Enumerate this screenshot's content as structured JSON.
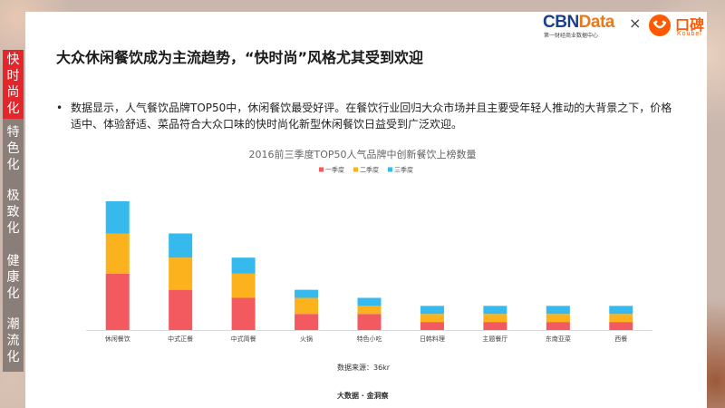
{
  "side_nav": {
    "items": [
      {
        "label": "快时尚化",
        "active": true
      },
      {
        "label": "特色化",
        "active": false
      },
      {
        "label": "极致化",
        "active": false
      },
      {
        "label": "健康化",
        "active": false
      },
      {
        "label": "潮流化",
        "active": false
      }
    ]
  },
  "logos": {
    "cbn_part1": "CBN",
    "cbn_part2": "Data",
    "cbn_sub": "第一财经商业数据中心",
    "times": "×",
    "koubei_name": "口碑",
    "koubei_sub": "Koubei"
  },
  "title": "大众休闲餐饮成为主流趋势，“快时尚”风格尤其受到欢迎",
  "bullet": {
    "marker": "•",
    "text": "数据显示，人气餐饮品牌TOP50中，休闲餐饮最受好评。在餐饮行业回归大众市场并且主要受年轻人推动的大背景之下，价格适中、体验舒适、菜品符合大众口味的快时尚化新型休闲餐饮日益受到广泛欢迎。"
  },
  "chart_data": {
    "type": "bar",
    "stacked": true,
    "title": "2016前三季度TOP50人气品牌中创新餐饮上榜数量",
    "categories": [
      "休闲餐饮",
      "中式正餐",
      "中式简餐",
      "火锅",
      "特色小吃",
      "日韩料理",
      "主题餐厅",
      "东南亚菜",
      "西餐"
    ],
    "series": [
      {
        "name": "一季度",
        "color": "#f25a5f",
        "values": [
          14,
          10,
          8,
          4,
          4,
          2,
          2,
          2,
          2
        ]
      },
      {
        "name": "二季度",
        "color": "#fcb21c",
        "values": [
          10,
          8,
          6,
          4,
          2,
          2,
          2,
          2,
          2
        ]
      },
      {
        "name": "三季度",
        "color": "#36b9ec",
        "values": [
          8,
          6,
          4,
          2,
          2,
          2,
          2,
          2,
          2
        ]
      }
    ],
    "ylim": [
      0,
      32
    ],
    "legend_position": "top",
    "grid": false,
    "xlabel": "",
    "ylabel": ""
  },
  "source": "数据来源：36kr",
  "footer": "大数据 · 金洞察"
}
